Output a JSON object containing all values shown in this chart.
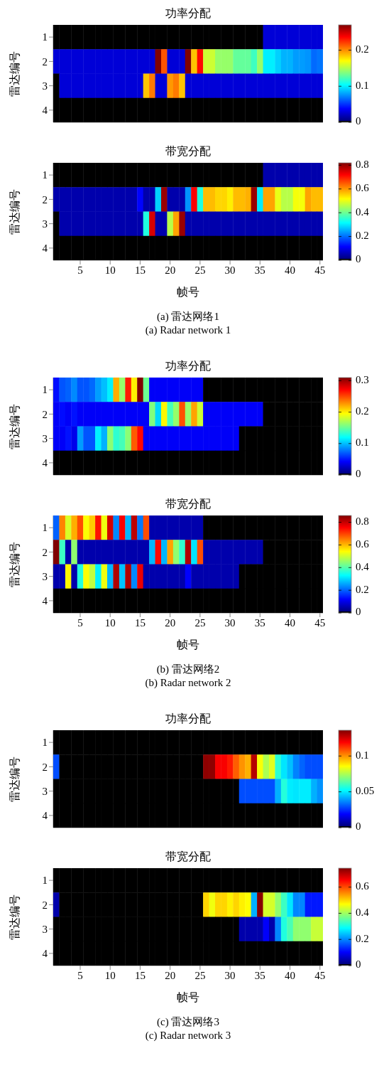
{
  "chart_data": [
    {
      "type": "heatmap",
      "title": "功率分配",
      "ylabel": "雷达编号",
      "tick_labels": "y",
      "categories": [
        null,
        null,
        null,
        null,
        "5",
        null,
        null,
        null,
        null,
        "10",
        null,
        null,
        null,
        null,
        "15",
        null,
        null,
        null,
        null,
        "20",
        null,
        null,
        null,
        null,
        "25",
        null,
        null,
        null,
        null,
        "30",
        null,
        null,
        null,
        null,
        "35",
        null,
        null,
        null,
        null,
        "40",
        null,
        null,
        null,
        null,
        "45"
      ],
      "y_categories": [
        "1",
        "2",
        "3",
        "4"
      ],
      "cells": [
        [
          0,
          0,
          0,
          0,
          0,
          0,
          0,
          0,
          0,
          0,
          0,
          0,
          0,
          0,
          0,
          0,
          0,
          0,
          0,
          0,
          0,
          0,
          0,
          0,
          0,
          0,
          0,
          0,
          0,
          0,
          0,
          0,
          0,
          0,
          0,
          0.027,
          0.027,
          0.027,
          0.027,
          0.027,
          0.027,
          0.027,
          0.027,
          0.027,
          0.027
        ],
        [
          0.027,
          0.027,
          0.027,
          0.027,
          0.027,
          0.027,
          0.027,
          0.027,
          0.027,
          0.027,
          0.027,
          0.027,
          0.027,
          0.027,
          0.027,
          0.027,
          0.027,
          0.27,
          0.215,
          0.027,
          0.027,
          0.027,
          0.27,
          0.186,
          0.235,
          0.157,
          0.157,
          0.143,
          0.143,
          0.143,
          0.13,
          0.13,
          0.13,
          0.12,
          0.143,
          0.1,
          0.1,
          0.092,
          0.084,
          0.084,
          0.078,
          0.078,
          0.076,
          0.065,
          0.068
        ],
        [
          0,
          0.027,
          0.027,
          0.027,
          0.027,
          0.027,
          0.027,
          0.027,
          0.027,
          0.027,
          0.027,
          0.027,
          0.027,
          0.027,
          0.027,
          0.186,
          0.205,
          0.027,
          0.027,
          0.197,
          0.205,
          0.186,
          0.027,
          0.027,
          0.027,
          0.027,
          0.027,
          0.027,
          0.027,
          0.027,
          0.027,
          0.027,
          0.027,
          0.027,
          0.027,
          0.027,
          0.027,
          0.027,
          0.027,
          0.027,
          0.027,
          0.027,
          0.027,
          0.027,
          0.027
        ],
        [
          0,
          0,
          0,
          0,
          0,
          0,
          0,
          0,
          0,
          0,
          0,
          0,
          0,
          0,
          0,
          0,
          0,
          0,
          0,
          0,
          0,
          0,
          0,
          0,
          0,
          0,
          0,
          0,
          0,
          0,
          0,
          0,
          0,
          0,
          0,
          0,
          0,
          0,
          0,
          0,
          0,
          0,
          0,
          0,
          0
        ]
      ],
      "clim": [
        0,
        0.27
      ],
      "cticks": [
        0,
        0.1,
        0.2
      ]
    },
    {
      "type": "heatmap",
      "title": "带宽分配",
      "xlabel": "帧号",
      "ylabel": "雷达编号",
      "categories": [
        null,
        null,
        null,
        null,
        "5",
        null,
        null,
        null,
        null,
        "10",
        null,
        null,
        null,
        null,
        "15",
        null,
        null,
        null,
        null,
        "20",
        null,
        null,
        null,
        null,
        "25",
        null,
        null,
        null,
        null,
        "30",
        null,
        null,
        null,
        null,
        "35",
        null,
        null,
        null,
        null,
        "40",
        null,
        null,
        null,
        null,
        "45"
      ],
      "y_categories": [
        "1",
        "2",
        "3",
        "4"
      ],
      "cells": [
        [
          0,
          0,
          0,
          0,
          0,
          0,
          0,
          0,
          0,
          0,
          0,
          0,
          0,
          0,
          0,
          0,
          0,
          0,
          0,
          0,
          0,
          0,
          0,
          0,
          0,
          0,
          0,
          0,
          0,
          0,
          0,
          0,
          0,
          0,
          0,
          0.048,
          0.048,
          0.048,
          0.048,
          0.048,
          0.048,
          0.048,
          0.048,
          0.048,
          0.048
        ],
        [
          0.048,
          0.048,
          0.048,
          0.048,
          0.048,
          0.048,
          0.048,
          0.048,
          0.048,
          0.048,
          0.048,
          0.048,
          0.048,
          0.048,
          0.115,
          0.048,
          0.048,
          0.28,
          0.8,
          0.048,
          0.048,
          0.048,
          0.23,
          0.72,
          0.34,
          0.57,
          0.57,
          0.55,
          0.55,
          0.53,
          0.57,
          0.57,
          0.58,
          0.8,
          0.3,
          0.59,
          0.59,
          0.5,
          0.46,
          0.46,
          0.51,
          0.51,
          0.59,
          0.57,
          0.57
        ],
        [
          0,
          0.048,
          0.048,
          0.048,
          0.048,
          0.048,
          0.048,
          0.048,
          0.048,
          0.048,
          0.048,
          0.048,
          0.048,
          0.048,
          0.048,
          0.34,
          0.75,
          0.048,
          0.048,
          0.46,
          0.59,
          0.8,
          0.048,
          0.048,
          0.048,
          0.048,
          0.048,
          0.048,
          0.048,
          0.048,
          0.048,
          0.048,
          0.048,
          0.048,
          0.048,
          0.048,
          0.048,
          0.048,
          0.048,
          0.048,
          0.048,
          0.048,
          0.048,
          0.048,
          0.048
        ],
        [
          0,
          0,
          0,
          0,
          0,
          0,
          0,
          0,
          0,
          0,
          0,
          0,
          0,
          0,
          0,
          0,
          0,
          0,
          0,
          0,
          0,
          0,
          0,
          0,
          0,
          0,
          0,
          0,
          0,
          0,
          0,
          0,
          0,
          0,
          0,
          0,
          0,
          0,
          0,
          0,
          0,
          0,
          0,
          0,
          0
        ]
      ],
      "clim": [
        0,
        0.82
      ],
      "cticks": [
        0,
        0.2,
        0.4,
        0.6,
        0.8
      ],
      "annotations": [
        "(a) 雷达网络1",
        "(a) Radar network 1"
      ]
    },
    {
      "type": "heatmap",
      "title": "功率分配",
      "ylabel": "雷达编号",
      "tick_labels": "y",
      "categories": [
        null,
        null,
        null,
        null,
        "5",
        null,
        null,
        null,
        null,
        "10",
        null,
        null,
        null,
        null,
        "15",
        null,
        null,
        null,
        null,
        "20",
        null,
        null,
        null,
        null,
        "25",
        null,
        null,
        null,
        null,
        "30",
        null,
        null,
        null,
        null,
        "35",
        null,
        null,
        null,
        null,
        "40",
        null,
        null,
        null,
        null,
        "45"
      ],
      "y_categories": [
        "1",
        "2",
        "3",
        "4"
      ],
      "cells": [
        [
          0.047,
          0.068,
          0.072,
          0.084,
          0.068,
          0.068,
          0.074,
          0.09,
          0.1,
          0.115,
          0.22,
          0.164,
          0.264,
          0.2,
          0.31,
          0.152,
          0.041,
          0.041,
          0.041,
          0.041,
          0.041,
          0.041,
          0.041,
          0.041,
          0.041,
          0,
          0,
          0,
          0,
          0,
          0,
          0,
          0,
          0,
          0,
          0,
          0,
          0,
          0,
          0,
          0,
          0,
          0,
          0,
          0
        ],
        [
          0.041,
          0.046,
          0.041,
          0.048,
          0.041,
          0.041,
          0.041,
          0.041,
          0.041,
          0.041,
          0.041,
          0.041,
          0.041,
          0.041,
          0.041,
          0.041,
          0.158,
          0.108,
          0.198,
          0.14,
          0.164,
          0.248,
          0.164,
          0.223,
          0.18,
          0.041,
          0.041,
          0.041,
          0.041,
          0.041,
          0.041,
          0.041,
          0.041,
          0.041,
          0.041,
          0,
          0,
          0,
          0,
          0,
          0,
          0,
          0,
          0,
          0
        ],
        [
          0.041,
          0.041,
          0.048,
          0.037,
          0.09,
          0.068,
          0.068,
          0.115,
          0.096,
          0.161,
          0.133,
          0.14,
          0.161,
          0.245,
          0.27,
          0.041,
          0.041,
          0.041,
          0.041,
          0.041,
          0.041,
          0.041,
          0.041,
          0.041,
          0.041,
          0.041,
          0.041,
          0.041,
          0.041,
          0.041,
          0.041,
          0,
          0,
          0,
          0,
          0,
          0,
          0,
          0,
          0,
          0,
          0,
          0,
          0,
          0
        ],
        [
          0,
          0,
          0,
          0,
          0,
          0,
          0,
          0,
          0,
          0,
          0,
          0,
          0,
          0,
          0,
          0,
          0,
          0,
          0,
          0,
          0,
          0,
          0,
          0,
          0,
          0,
          0,
          0,
          0,
          0,
          0,
          0,
          0,
          0,
          0,
          0,
          0,
          0,
          0,
          0,
          0,
          0,
          0,
          0,
          0
        ]
      ],
      "clim": [
        0,
        0.31
      ],
      "cticks": [
        0,
        0.1,
        0.2,
        0.3
      ]
    },
    {
      "type": "heatmap",
      "title": "带宽分配",
      "xlabel": "帧号",
      "ylabel": "雷达编号",
      "categories": [
        null,
        null,
        null,
        null,
        "5",
        null,
        null,
        null,
        null,
        "10",
        null,
        null,
        null,
        null,
        "15",
        null,
        null,
        null,
        null,
        "20",
        null,
        null,
        null,
        null,
        "25",
        null,
        null,
        null,
        null,
        "30",
        null,
        null,
        null,
        null,
        "35",
        null,
        null,
        null,
        null,
        "40",
        null,
        null,
        null,
        null,
        "45"
      ],
      "y_categories": [
        "1",
        "2",
        "3",
        "4"
      ],
      "cells": [
        [
          0.2,
          0.645,
          0.51,
          0.61,
          0.69,
          0.54,
          0.585,
          0.74,
          0.53,
          0.79,
          0.232,
          0.76,
          0.27,
          0.81,
          0.22,
          0.69,
          0.05,
          0.05,
          0.05,
          0.05,
          0.05,
          0.05,
          0.05,
          0.05,
          0.05,
          0,
          0,
          0,
          0,
          0,
          0,
          0,
          0,
          0,
          0,
          0,
          0,
          0,
          0,
          0,
          0,
          0,
          0,
          0,
          0
        ],
        [
          0.86,
          0.38,
          0.05,
          0.45,
          0.05,
          0.05,
          0.05,
          0.05,
          0.05,
          0.05,
          0.05,
          0.05,
          0.05,
          0.05,
          0.05,
          0.05,
          0.27,
          0.75,
          0.27,
          0.62,
          0.45,
          0.37,
          0.82,
          0.31,
          0.69,
          0.05,
          0.05,
          0.05,
          0.05,
          0.05,
          0.05,
          0.05,
          0.05,
          0.05,
          0.05,
          0,
          0,
          0,
          0,
          0,
          0,
          0,
          0,
          0,
          0
        ],
        [
          0.05,
          0.05,
          0.55,
          0.05,
          0.36,
          0.54,
          0.49,
          0.32,
          0.53,
          0.27,
          0.82,
          0.28,
          0.82,
          0.232,
          0.77,
          0.05,
          0.05,
          0.05,
          0.05,
          0.05,
          0.05,
          0.05,
          0.12,
          0.05,
          0.05,
          0.05,
          0.05,
          0.05,
          0.05,
          0.05,
          0.05,
          0,
          0,
          0,
          0,
          0,
          0,
          0,
          0,
          0,
          0,
          0,
          0,
          0,
          0
        ],
        [
          0,
          0,
          0,
          0,
          0,
          0,
          0,
          0,
          0,
          0,
          0,
          0,
          0,
          0,
          0,
          0,
          0,
          0,
          0,
          0,
          0,
          0,
          0,
          0,
          0,
          0,
          0,
          0,
          0,
          0,
          0,
          0,
          0,
          0,
          0,
          0,
          0,
          0,
          0,
          0,
          0,
          0,
          0,
          0,
          0
        ]
      ],
      "clim": [
        0,
        0.86
      ],
      "cticks": [
        0,
        0.2,
        0.4,
        0.6,
        0.8
      ],
      "annotations": [
        "(b) 雷达网络2",
        "(b) Radar network 2"
      ]
    },
    {
      "type": "heatmap",
      "title": "功率分配",
      "ylabel": "雷达编号",
      "tick_labels": "y",
      "categories": [
        null,
        null,
        null,
        null,
        "5",
        null,
        null,
        null,
        null,
        "10",
        null,
        null,
        null,
        null,
        "15",
        null,
        null,
        null,
        null,
        "20",
        null,
        null,
        null,
        null,
        "25",
        null,
        null,
        null,
        null,
        "30",
        null,
        null,
        null,
        null,
        "35",
        null,
        null,
        null,
        null,
        "40",
        null,
        null,
        null,
        null,
        "45"
      ],
      "y_categories": [
        "1",
        "2",
        "3",
        "4"
      ],
      "cells": [
        [
          0,
          0,
          0,
          0,
          0,
          0,
          0,
          0,
          0,
          0,
          0,
          0,
          0,
          0,
          0,
          0,
          0,
          0,
          0,
          0,
          0,
          0,
          0,
          0,
          0,
          0,
          0,
          0,
          0,
          0,
          0,
          0,
          0,
          0,
          0,
          0,
          0,
          0,
          0,
          0,
          0,
          0,
          0,
          0,
          0
        ],
        [
          0.029,
          0,
          0,
          0,
          0,
          0,
          0,
          0,
          0,
          0,
          0,
          0,
          0,
          0,
          0,
          0,
          0,
          0,
          0,
          0,
          0,
          0,
          0,
          0,
          0,
          0.134,
          0.134,
          0.12,
          0.12,
          0.116,
          0.107,
          0.1,
          0.096,
          0.129,
          0.085,
          0.075,
          0.082,
          0.058,
          0.049,
          0.044,
          0.036,
          0.032,
          0.029,
          0.029,
          0.029
        ],
        [
          0,
          0,
          0,
          0,
          0,
          0,
          0,
          0,
          0,
          0,
          0,
          0,
          0,
          0,
          0,
          0,
          0,
          0,
          0,
          0,
          0,
          0,
          0,
          0,
          0,
          0,
          0,
          0,
          0,
          0,
          0,
          0.029,
          0.029,
          0.029,
          0.029,
          0.029,
          0.029,
          0.042,
          0.057,
          0.05,
          0.049,
          0.05,
          0.05,
          0.042,
          0.038
        ],
        [
          0,
          0,
          0,
          0,
          0,
          0,
          0,
          0,
          0,
          0,
          0,
          0,
          0,
          0,
          0,
          0,
          0,
          0,
          0,
          0,
          0,
          0,
          0,
          0,
          0,
          0,
          0,
          0,
          0,
          0,
          0,
          0,
          0,
          0,
          0,
          0,
          0,
          0,
          0,
          0,
          0,
          0,
          0,
          0,
          0
        ]
      ],
      "clim": [
        0,
        0.136
      ],
      "cticks": [
        0,
        0.05,
        0.1
      ]
    },
    {
      "type": "heatmap",
      "title": "带宽分配",
      "xlabel": "帧号",
      "ylabel": "雷达编号",
      "categories": [
        null,
        null,
        null,
        null,
        "5",
        null,
        null,
        null,
        null,
        "10",
        null,
        null,
        null,
        null,
        "15",
        null,
        null,
        null,
        null,
        "20",
        null,
        null,
        null,
        null,
        "25",
        null,
        null,
        null,
        null,
        "30",
        null,
        null,
        null,
        null,
        "35",
        null,
        null,
        null,
        null,
        "40",
        null,
        null,
        null,
        null,
        "45"
      ],
      "y_categories": [
        "1",
        "2",
        "3",
        "4"
      ],
      "cells": [
        [
          0,
          0,
          0,
          0,
          0,
          0,
          0,
          0,
          0,
          0,
          0,
          0,
          0,
          0,
          0,
          0,
          0,
          0,
          0,
          0,
          0,
          0,
          0,
          0,
          0,
          0,
          0,
          0,
          0,
          0,
          0,
          0,
          0,
          0,
          0,
          0,
          0,
          0,
          0,
          0,
          0,
          0,
          0,
          0,
          0
        ],
        [
          0.043,
          0,
          0,
          0,
          0,
          0,
          0,
          0,
          0,
          0,
          0,
          0,
          0,
          0,
          0,
          0,
          0,
          0,
          0,
          0,
          0,
          0,
          0,
          0,
          0,
          0.5,
          0.46,
          0.5,
          0.5,
          0.48,
          0.5,
          0.48,
          0.47,
          0.23,
          0.74,
          0.44,
          0.44,
          0.39,
          0.33,
          0.27,
          0.2,
          0.2,
          0.12,
          0.12,
          0.12
        ],
        [
          0,
          0,
          0,
          0,
          0,
          0,
          0,
          0,
          0,
          0,
          0,
          0,
          0,
          0,
          0,
          0,
          0,
          0,
          0,
          0,
          0,
          0,
          0,
          0,
          0,
          0,
          0,
          0,
          0,
          0,
          0,
          0.043,
          0.043,
          0.043,
          0.043,
          0.1,
          0.043,
          0.2,
          0.31,
          0.34,
          0.39,
          0.39,
          0.39,
          0.43,
          0.43
        ],
        [
          0,
          0,
          0,
          0,
          0,
          0,
          0,
          0,
          0,
          0,
          0,
          0,
          0,
          0,
          0,
          0,
          0,
          0,
          0,
          0,
          0,
          0,
          0,
          0,
          0,
          0,
          0,
          0,
          0,
          0,
          0,
          0,
          0,
          0,
          0,
          0,
          0,
          0,
          0,
          0,
          0,
          0,
          0,
          0,
          0
        ]
      ],
      "clim": [
        0,
        0.745
      ],
      "cticks": [
        0,
        0.2,
        0.4,
        0.6
      ],
      "annotations": [
        "(c) 雷达网络3",
        "(c) Radar network 3"
      ]
    }
  ]
}
